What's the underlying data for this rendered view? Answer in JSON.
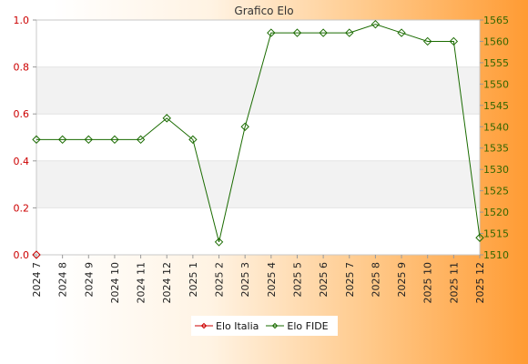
{
  "chart_data": {
    "type": "line",
    "title": "Grafico Elo",
    "categories": [
      "2024 7",
      "2024 8",
      "2024 9",
      "2024 10",
      "2024 11",
      "2024 12",
      "2025 1",
      "2025 2",
      "2025 3",
      "2025 4",
      "2025 5",
      "2025 6",
      "2025 7",
      "2025 8",
      "2025 9",
      "2025 10",
      "2025 11",
      "2025 12"
    ],
    "y_left": {
      "ylim": [
        0,
        1
      ],
      "ticks": [
        "0.0",
        "0.2",
        "0.4",
        "0.6",
        "0.8",
        "1.0"
      ],
      "tick_color": "#cc0000"
    },
    "y_right": {
      "ylim": [
        1510,
        1565
      ],
      "ticks": [
        "1510",
        "1515",
        "1520",
        "1525",
        "1530",
        "1535",
        "1540",
        "1545",
        "1550",
        "1555",
        "1560",
        "1565"
      ],
      "tick_color": "#336600"
    },
    "grid": "horizontal bands",
    "legend_position": "bottom-center",
    "series": [
      {
        "name": "Elo Italia",
        "axis": "left",
        "color": "#cc0000",
        "values": [
          0,
          null,
          null,
          null,
          null,
          null,
          null,
          null,
          null,
          null,
          null,
          null,
          null,
          null,
          null,
          null,
          null,
          null
        ]
      },
      {
        "name": "Elo FIDE",
        "axis": "right",
        "color": "#1a6b00",
        "values": [
          1537,
          1537,
          1537,
          1537,
          1537,
          1542,
          1537,
          1513,
          1540,
          1562,
          1562,
          1562,
          1562,
          1564,
          1562,
          1560,
          1560,
          1514
        ]
      }
    ]
  }
}
